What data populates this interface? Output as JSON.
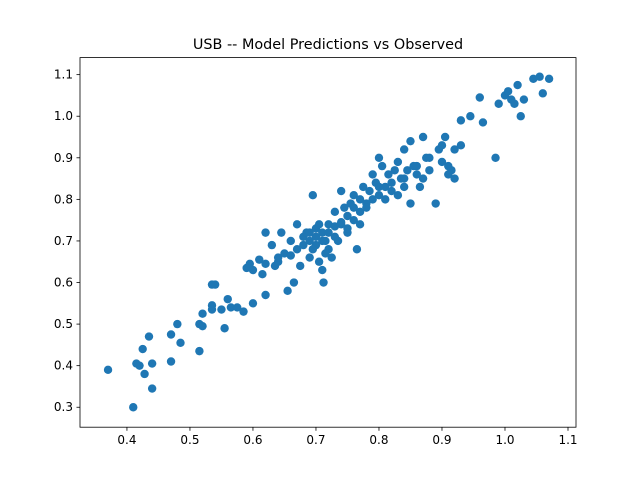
{
  "chart_data": {
    "type": "scatter",
    "title": "USB -- Model Predictions vs Observed",
    "xlim": [
      0.3255,
      1.1127
    ],
    "ylim": [
      0.252,
      1.141
    ],
    "xticks": [
      0.4,
      0.5,
      0.6,
      0.7,
      0.8,
      0.9,
      {
        "value": 1,
        "label": "1.0"
      },
      1.1
    ],
    "yticks": [
      0.3,
      0.4,
      0.5,
      0.6,
      0.7,
      0.8,
      0.9,
      {
        "value": 1,
        "label": "1.0"
      },
      1.1
    ],
    "series": [
      {
        "color": "#1f77b4",
        "x": [
          0.37,
          0.41,
          0.415,
          0.42,
          0.425,
          0.428,
          0.435,
          0.44,
          0.44,
          0.47,
          0.47,
          0.48,
          0.485,
          0.515,
          0.515,
          0.52,
          0.52,
          0.535,
          0.535,
          0.535,
          0.54,
          0.55,
          0.555,
          0.56,
          0.565,
          0.575,
          0.585,
          0.59,
          0.595,
          0.6,
          0.6,
          0.61,
          0.615,
          0.62,
          0.62,
          0.62,
          0.63,
          0.635,
          0.64,
          0.645,
          0.65,
          0.655,
          0.66,
          0.665,
          0.67,
          0.67,
          0.675,
          0.68,
          0.685,
          0.69,
          0.69,
          0.695,
          0.7,
          0.7,
          0.705,
          0.71,
          0.71,
          0.712,
          0.715,
          0.72,
          0.72,
          0.725,
          0.73,
          0.73,
          0.735,
          0.74,
          0.74,
          0.745,
          0.75,
          0.75,
          0.755,
          0.76,
          0.76,
          0.765,
          0.77,
          0.77,
          0.775,
          0.78,
          0.785,
          0.79,
          0.795,
          0.8,
          0.8,
          0.805,
          0.81,
          0.815,
          0.82,
          0.825,
          0.83,
          0.835,
          0.84,
          0.845,
          0.85,
          0.85,
          0.855,
          0.86,
          0.865,
          0.87,
          0.875,
          0.88,
          0.89,
          0.895,
          0.9,
          0.905,
          0.91,
          0.915,
          0.92,
          0.93,
          0.93,
          0.945,
          0.96,
          0.965,
          0.985,
          0.99,
          1.0,
          1.005,
          1.01,
          1.015,
          1.02,
          1.025,
          1.03,
          1.045,
          1.055,
          1.06,
          1.07,
          0.69,
          0.7,
          0.705,
          0.68,
          0.715,
          0.695,
          0.72,
          0.74,
          0.76,
          0.78,
          0.82,
          0.83,
          0.84,
          0.86,
          0.73,
          0.71,
          0.66,
          0.64,
          0.75,
          0.77,
          0.8,
          0.81,
          0.79,
          0.84,
          0.87,
          0.88,
          0.9,
          0.91,
          0.92
        ],
        "values": [
          0.39,
          0.3,
          0.405,
          0.4,
          0.44,
          0.38,
          0.47,
          0.345,
          0.405,
          0.41,
          0.475,
          0.5,
          0.455,
          0.5,
          0.435,
          0.495,
          0.525,
          0.545,
          0.535,
          0.595,
          0.595,
          0.535,
          0.49,
          0.56,
          0.54,
          0.54,
          0.53,
          0.635,
          0.645,
          0.63,
          0.55,
          0.655,
          0.62,
          0.57,
          0.645,
          0.72,
          0.69,
          0.64,
          0.65,
          0.72,
          0.67,
          0.58,
          0.7,
          0.6,
          0.74,
          0.68,
          0.64,
          0.71,
          0.72,
          0.66,
          0.7,
          0.81,
          0.73,
          0.69,
          0.65,
          0.72,
          0.63,
          0.6,
          0.7,
          0.74,
          0.68,
          0.66,
          0.77,
          0.71,
          0.7,
          0.82,
          0.74,
          0.78,
          0.76,
          0.72,
          0.79,
          0.81,
          0.75,
          0.68,
          0.8,
          0.77,
          0.83,
          0.79,
          0.82,
          0.86,
          0.84,
          0.81,
          0.9,
          0.88,
          0.83,
          0.86,
          0.84,
          0.87,
          0.89,
          0.85,
          0.92,
          0.87,
          0.79,
          0.94,
          0.88,
          0.86,
          0.83,
          0.95,
          0.9,
          0.87,
          0.79,
          0.92,
          0.89,
          0.95,
          0.88,
          0.87,
          0.92,
          0.99,
          0.93,
          1.0,
          1.045,
          0.985,
          0.9,
          1.03,
          1.05,
          1.06,
          1.04,
          1.03,
          1.075,
          1.0,
          1.04,
          1.09,
          1.095,
          1.055,
          1.09,
          0.72,
          0.71,
          0.74,
          0.69,
          0.67,
          0.68,
          0.72,
          0.745,
          0.78,
          0.78,
          0.82,
          0.81,
          0.85,
          0.88,
          0.735,
          0.7,
          0.665,
          0.66,
          0.73,
          0.74,
          0.83,
          0.8,
          0.8,
          0.83,
          0.85,
          0.9,
          0.93,
          0.86,
          0.85
        ]
      }
    ]
  }
}
